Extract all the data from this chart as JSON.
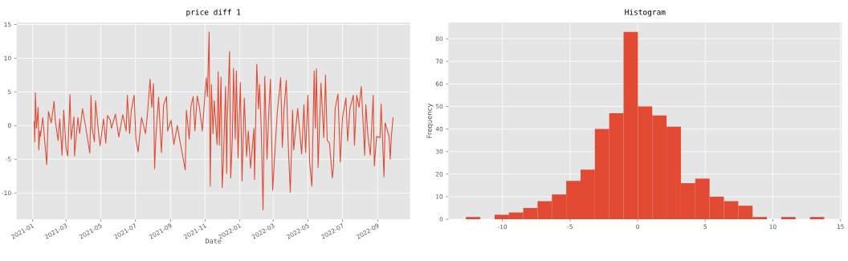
{
  "chart_data": [
    {
      "type": "line",
      "title": "price diff 1",
      "xlabel": "Date",
      "color": "#e24a33",
      "grid": true,
      "xlim": [
        "2020-12-04",
        "2022-10-28"
      ],
      "ylim": [
        -13.9,
        15.3
      ],
      "xticks": [
        "2021-01",
        "2021-03",
        "2021-05",
        "2021-07",
        "2021-09",
        "2021-11",
        "2022-01",
        "2022-03",
        "2022-05",
        "2022-07",
        "2022-09"
      ],
      "yticks": [
        -10,
        -5,
        0,
        5,
        10,
        15
      ],
      "x": [
        "2021-01-04",
        "2021-01-05",
        "2021-01-06",
        "2021-01-08",
        "2021-01-11",
        "2021-01-12",
        "2021-01-14",
        "2021-01-15",
        "2021-01-19",
        "2021-01-26",
        "2021-01-29",
        "2021-02-03",
        "2021-02-08",
        "2021-02-10",
        "2021-02-15",
        "2021-02-18",
        "2021-02-22",
        "2021-02-25",
        "2021-03-01",
        "2021-03-04",
        "2021-03-08",
        "2021-03-10",
        "2021-03-15",
        "2021-03-16",
        "2021-03-22",
        "2021-03-25",
        "2021-03-30",
        "2021-04-05",
        "2021-04-12",
        "2021-04-14",
        "2021-04-16",
        "2021-04-20",
        "2021-04-22",
        "2021-04-28",
        "2021-04-30",
        "2021-05-06",
        "2021-05-10",
        "2021-05-13",
        "2021-05-18",
        "2021-05-20",
        "2021-05-27",
        "2021-06-02",
        "2021-06-09",
        "2021-06-15",
        "2021-06-17",
        "2021-06-21",
        "2021-06-24",
        "2021-06-29",
        "2021-07-02",
        "2021-07-06",
        "2021-07-12",
        "2021-07-19",
        "2021-07-23",
        "2021-07-27",
        "2021-07-30",
        "2021-08-02",
        "2021-08-04",
        "2021-08-06",
        "2021-08-11",
        "2021-08-16",
        "2021-08-20",
        "2021-08-25",
        "2021-08-27",
        "2021-09-02",
        "2021-09-07",
        "2021-09-13",
        "2021-09-17",
        "2021-09-27",
        "2021-09-29",
        "2021-10-04",
        "2021-10-07",
        "2021-10-11",
        "2021-10-14",
        "2021-10-18",
        "2021-10-22",
        "2021-10-27",
        "2021-11-01",
        "2021-11-03",
        "2021-11-05",
        "2021-11-08",
        "2021-11-10",
        "2021-11-12",
        "2021-11-15",
        "2021-11-17",
        "2021-11-22",
        "2021-11-24",
        "2021-11-26",
        "2021-11-29",
        "2021-12-01",
        "2021-12-03",
        "2021-12-07",
        "2021-12-09",
        "2021-12-10",
        "2021-12-14",
        "2021-12-16",
        "2021-12-19",
        "2021-12-21",
        "2021-12-24",
        "2021-12-26",
        "2021-12-29",
        "2022-01-02",
        "2022-01-05",
        "2022-01-09",
        "2022-01-13",
        "2022-01-16",
        "2022-01-20",
        "2022-01-26",
        "2022-01-27",
        "2022-01-31",
        "2022-02-03",
        "2022-02-05",
        "2022-02-08",
        "2022-02-11",
        "2022-02-14",
        "2022-02-18",
        "2022-02-21",
        "2022-02-24",
        "2022-02-28",
        "2022-03-03",
        "2022-03-08",
        "2022-03-12",
        "2022-03-14",
        "2022-03-17",
        "2022-03-20",
        "2022-03-24",
        "2022-03-27",
        "2022-03-31",
        "2022-04-04",
        "2022-04-06",
        "2022-04-13",
        "2022-04-20",
        "2022-04-24",
        "2022-04-27",
        "2022-05-01",
        "2022-05-04",
        "2022-05-08",
        "2022-05-12",
        "2022-05-14",
        "2022-05-16",
        "2022-05-19",
        "2022-05-24",
        "2022-05-29",
        "2022-06-01",
        "2022-06-04",
        "2022-06-08",
        "2022-06-13",
        "2022-06-15",
        "2022-06-18",
        "2022-06-23",
        "2022-06-27",
        "2022-07-01",
        "2022-07-07",
        "2022-07-10",
        "2022-07-14",
        "2022-07-20",
        "2022-07-22",
        "2022-07-26",
        "2022-07-30",
        "2022-08-03",
        "2022-08-09",
        "2022-08-11",
        "2022-08-15",
        "2022-08-19",
        "2022-08-24",
        "2022-08-26",
        "2022-08-30",
        "2022-09-05",
        "2022-09-07",
        "2022-09-12",
        "2022-09-14",
        "2022-09-21",
        "2022-09-23",
        "2022-09-25",
        "2022-09-28"
      ],
      "values": [
        0.6,
        -2.4,
        4.9,
        -0.4,
        2.7,
        -3.6,
        -0.8,
        -1.6,
        1.2,
        -5.8,
        2.1,
        0.4,
        3.6,
        0.8,
        -2.2,
        1.0,
        -4.4,
        2.3,
        -3.4,
        -4.5,
        4.6,
        -2.0,
        1.3,
        -4.5,
        1.2,
        -1.2,
        2.5,
        -0.4,
        -4.1,
        4.5,
        -0.4,
        -2.4,
        3.7,
        -1.6,
        -3.0,
        1.0,
        -2.6,
        1.5,
        0.8,
        -0.4,
        1.7,
        -1.7,
        1.6,
        -0.8,
        4.5,
        -1.2,
        2.3,
        4.5,
        -2.0,
        -3.9,
        1.2,
        -1.2,
        2.3,
        6.9,
        2.7,
        6.2,
        -6.4,
        -2.0,
        4.2,
        -4.0,
        3.1,
        4.3,
        -0.8,
        0.8,
        -2.8,
        0.0,
        -2.0,
        -6.6,
        2.3,
        -2.0,
        2.9,
        4.3,
        -0.8,
        4.4,
        2.7,
        -0.8,
        4.9,
        7.1,
        4.3,
        13.9,
        -9.0,
        6.1,
        -1.2,
        3.7,
        -2.8,
        8.0,
        -2.9,
        7.2,
        -9.2,
        -5.6,
        5.8,
        -7.1,
        0.6,
        11.0,
        -7.8,
        -1.8,
        8.5,
        -2.0,
        8.1,
        -4.8,
        6.4,
        -8.2,
        4.1,
        -4.6,
        -0.8,
        -6.3,
        -0.4,
        -8.0,
        9.1,
        2.5,
        6.1,
        -1.0,
        -12.5,
        7.3,
        -5.0,
        1.7,
        6.9,
        -9.6,
        -5.2,
        1.9,
        5.3,
        7.1,
        -3.2,
        2.5,
        6.7,
        -2.0,
        -9.9,
        2.3,
        -3.6,
        2.5,
        -4.2,
        3.1,
        -4.0,
        4.5,
        -5.5,
        -9.0,
        8.1,
        -0.4,
        8.4,
        -6.2,
        6.3,
        -1.8,
        7.5,
        -2.2,
        -2.6,
        -7.8,
        -6.2,
        2.5,
        4.7,
        -5.4,
        1.2,
        4.1,
        -2.3,
        2.5,
        4.5,
        -2.9,
        4.5,
        2.7,
        5.8,
        -4.4,
        3.1,
        -1.8,
        -4.4,
        4.5,
        -6.0,
        -1.6,
        -1.8,
        3.2,
        -7.6,
        0.4,
        -1.6,
        -5.0,
        -1.6,
        1.2
      ]
    },
    {
      "type": "histogram",
      "title": "Histogram",
      "ylabel": "Frequency",
      "color": "#e24a33",
      "grid": true,
      "xlim": [
        -14.0,
        15.1
      ],
      "ylim": [
        0,
        87.2
      ],
      "xticks": [
        -10,
        -5,
        0,
        5,
        10,
        15
      ],
      "yticks": [
        0,
        10,
        20,
        30,
        40,
        50,
        60,
        70,
        80
      ],
      "bins": [
        -12.7,
        -11.64,
        -10.58,
        -9.52,
        -8.46,
        -7.4,
        -6.34,
        -5.28,
        -4.22,
        -3.16,
        -2.1,
        -1.04,
        0.02,
        1.08,
        2.14,
        3.2,
        4.26,
        5.32,
        6.38,
        7.44,
        8.5,
        9.56,
        10.62,
        11.68,
        12.74,
        13.8
      ],
      "values": [
        1,
        0,
        2,
        3,
        5,
        8,
        11,
        17,
        22,
        40,
        47,
        83,
        50,
        46,
        41,
        16,
        18,
        10,
        8,
        6,
        1,
        0,
        1,
        0,
        1
      ]
    }
  ]
}
